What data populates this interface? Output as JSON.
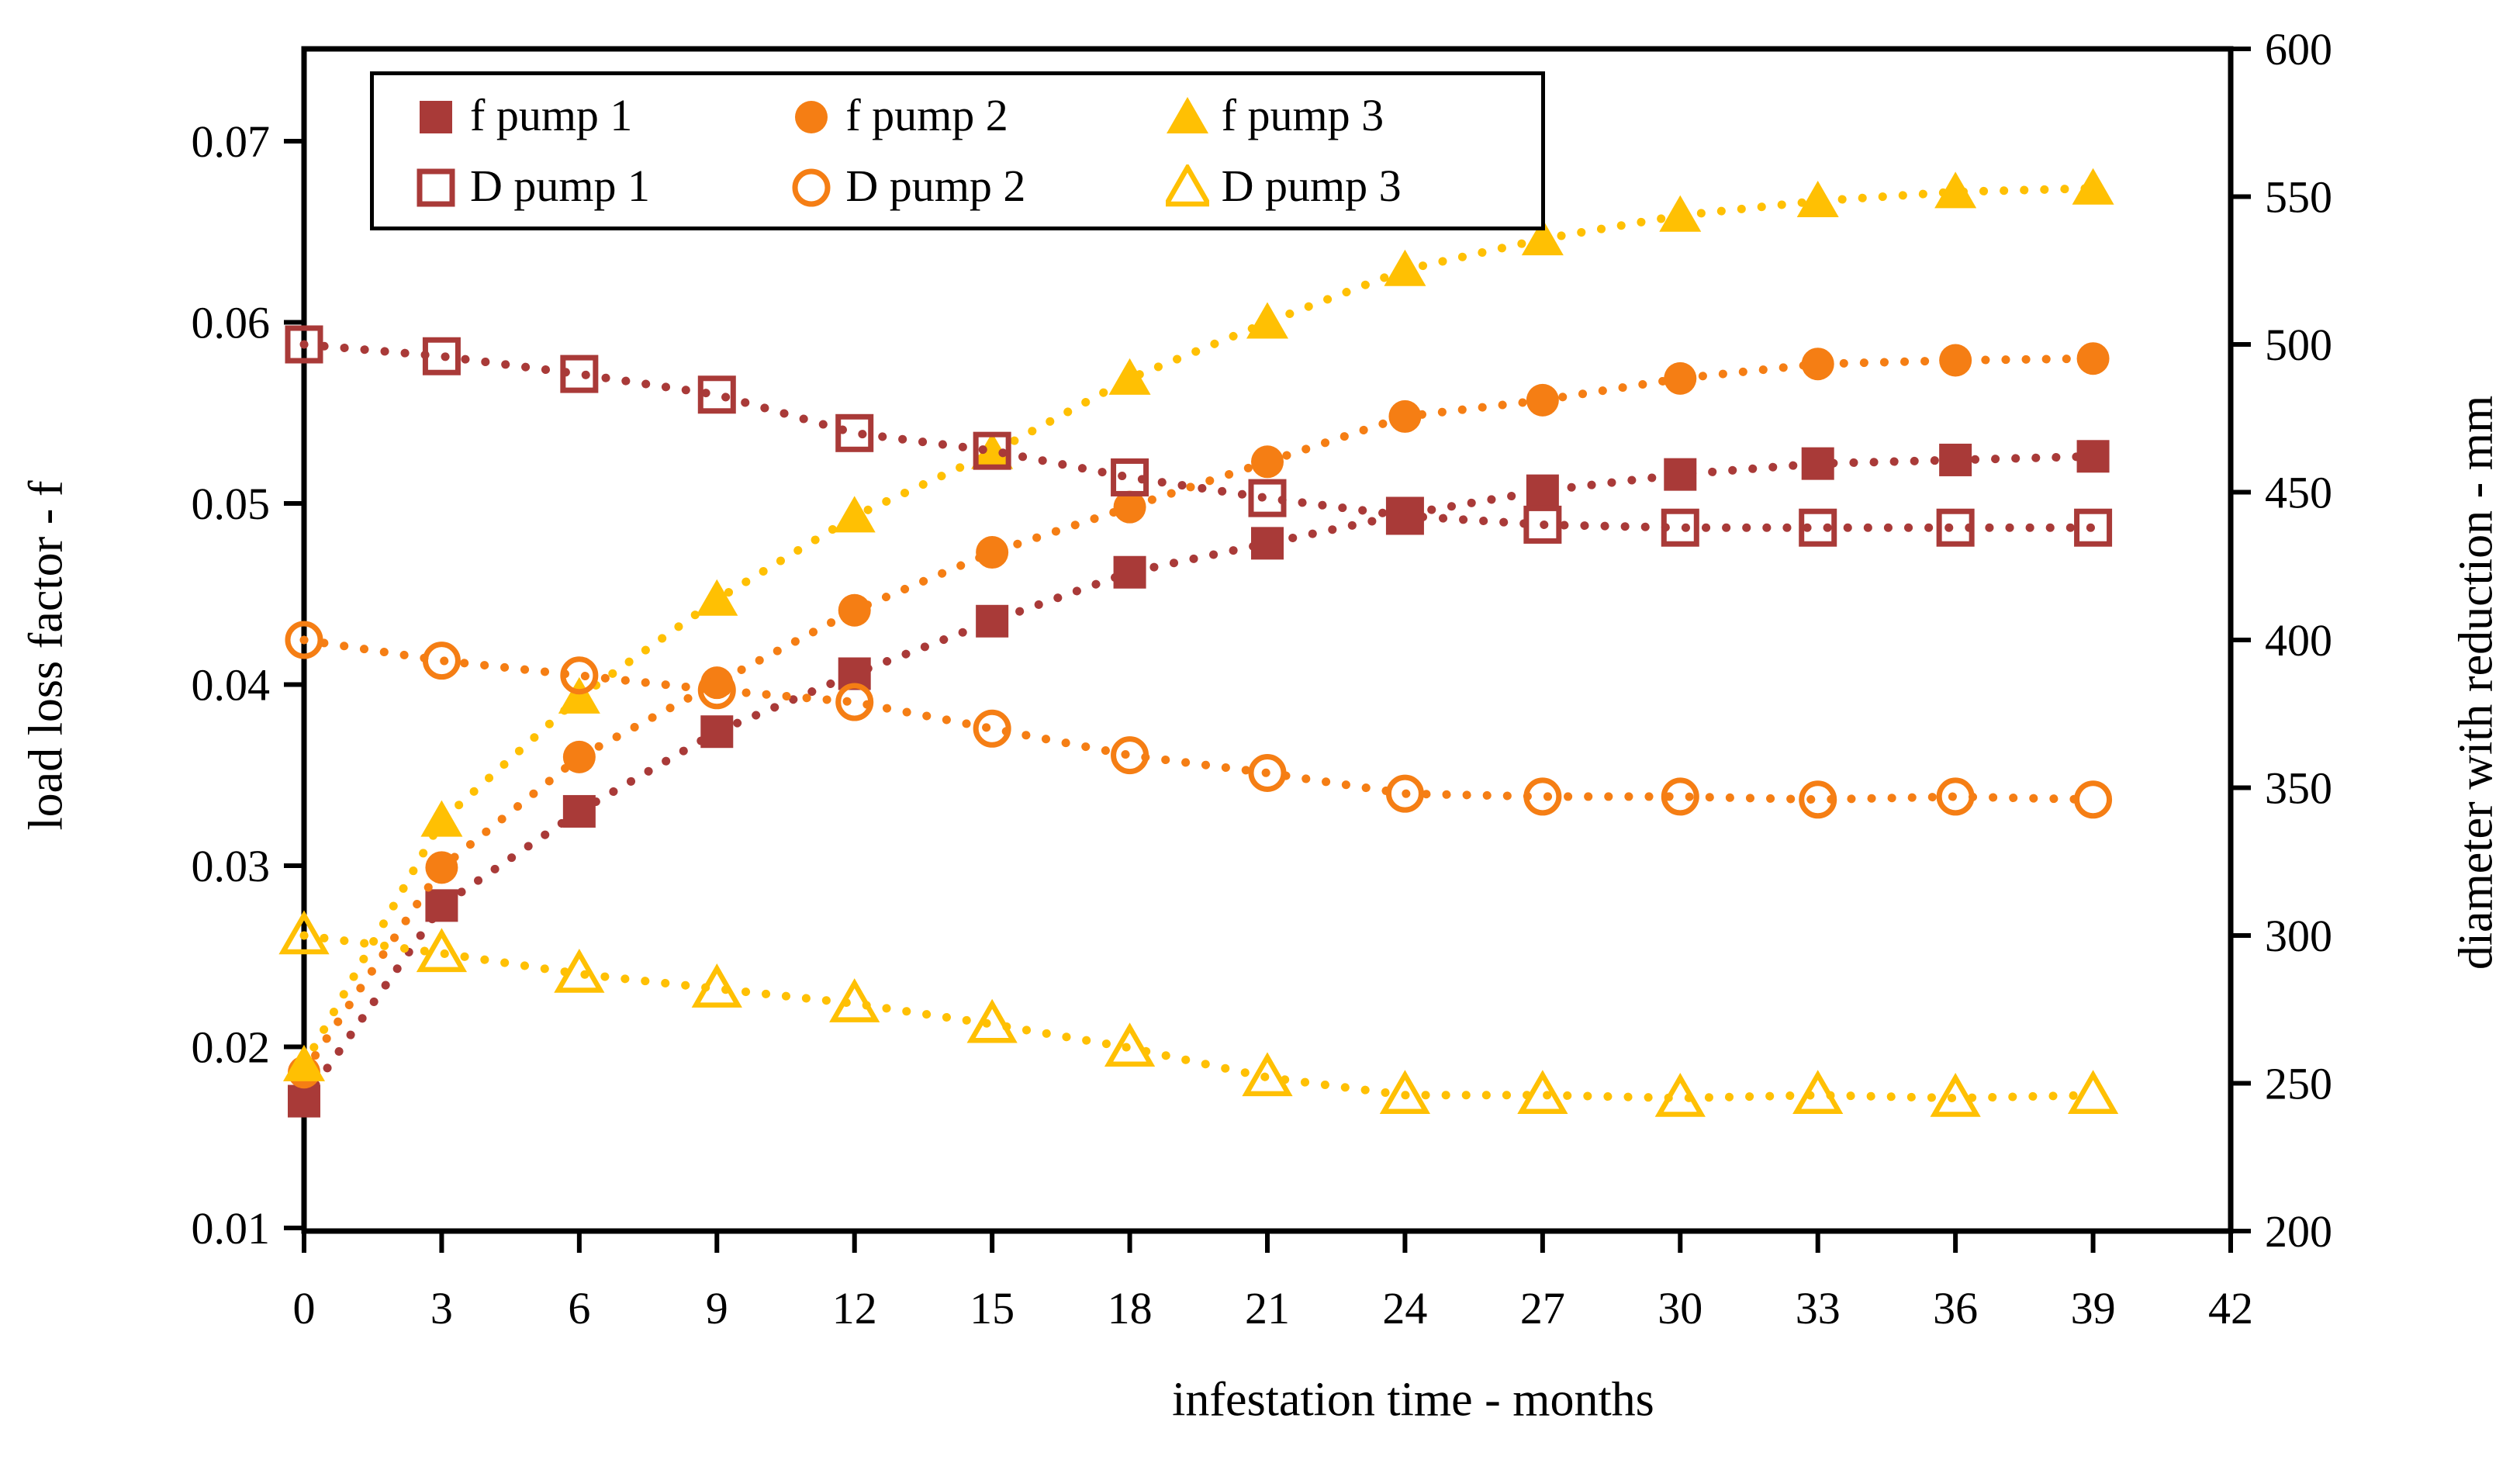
{
  "chart_data": {
    "type": "line",
    "x": [
      0,
      3,
      6,
      9,
      12,
      15,
      18,
      21,
      24,
      27,
      30,
      33,
      36,
      39
    ],
    "x_axis": {
      "label": "infestation time - months",
      "min": 0,
      "max": 42,
      "ticks": [
        {
          "v": 0,
          "label": "0"
        },
        {
          "v": 3,
          "label": "3"
        },
        {
          "v": 6,
          "label": "6"
        },
        {
          "v": 9,
          "label": "9"
        },
        {
          "v": 12,
          "label": "12"
        },
        {
          "v": 15,
          "label": "15"
        },
        {
          "v": 18,
          "label": "18"
        },
        {
          "v": 21,
          "label": "21"
        },
        {
          "v": 24,
          "label": "24"
        },
        {
          "v": 27,
          "label": "27"
        },
        {
          "v": 30,
          "label": "30"
        },
        {
          "v": 33,
          "label": "33"
        },
        {
          "v": 36,
          "label": "36"
        },
        {
          "v": 39,
          "label": "39"
        },
        {
          "v": 42,
          "label": "42"
        }
      ]
    },
    "left_axis": {
      "label": "load loss factor - f",
      "min": 0.01,
      "max": 0.07,
      "ticks": [
        {
          "v": 0.01,
          "label": "0.01"
        },
        {
          "v": 0.02,
          "label": "0.02"
        },
        {
          "v": 0.03,
          "label": "0.03"
        },
        {
          "v": 0.04,
          "label": "0.04"
        },
        {
          "v": 0.05,
          "label": "0.05"
        },
        {
          "v": 0.06,
          "label": "0.06"
        },
        {
          "v": 0.07,
          "label": "0.07"
        }
      ]
    },
    "right_axis": {
      "label": "diameter with reduction - mm",
      "min": 200,
      "max": 600,
      "ticks": [
        {
          "v": 200,
          "label": "200"
        },
        {
          "v": 250,
          "label": "250"
        },
        {
          "v": 300,
          "label": "300"
        },
        {
          "v": 350,
          "label": "350"
        },
        {
          "v": 400,
          "label": "400"
        },
        {
          "v": 450,
          "label": "450"
        },
        {
          "v": 500,
          "label": "500"
        },
        {
          "v": 550,
          "label": "550"
        },
        {
          "v": 600,
          "label": "600"
        }
      ]
    },
    "legend_position": "top-left-inside",
    "grid": false,
    "line_style": "dotted",
    "colors": {
      "pump1": "#a93a38",
      "pump2": "#f57e14",
      "pump3": "#ffc003"
    },
    "series": [
      {
        "name": "f pump 1",
        "axis": "left",
        "marker": "square",
        "fill": "filled",
        "color": "#a93a38",
        "values": [
          0.017,
          0.0278,
          0.033,
          0.0374,
          0.0406,
          0.0435,
          0.0462,
          0.0478,
          0.0494,
          0.0507,
          0.0516,
          0.0522,
          0.0524,
          0.0526
        ]
      },
      {
        "name": "f pump 2",
        "axis": "left",
        "marker": "circle",
        "fill": "filled",
        "color": "#f57e14",
        "values": [
          0.0186,
          0.0299,
          0.036,
          0.0401,
          0.0441,
          0.0473,
          0.0498,
          0.0523,
          0.0548,
          0.0557,
          0.0569,
          0.0577,
          0.0579,
          0.058
        ]
      },
      {
        "name": "f pump 3",
        "axis": "left",
        "marker": "triangle",
        "fill": "filled",
        "color": "#ffc003",
        "values": [
          0.019,
          0.0325,
          0.0393,
          0.0447,
          0.0493,
          0.0528,
          0.0569,
          0.06,
          0.0629,
          0.0646,
          0.0659,
          0.0667,
          0.0672,
          0.0674
        ]
      },
      {
        "name": "D pump 1",
        "axis": "right",
        "marker": "square",
        "fill": "open",
        "color": "#a93a38",
        "values": [
          500,
          496,
          490,
          483,
          470,
          464,
          455,
          448,
          442,
          439,
          438,
          438,
          438,
          438
        ]
      },
      {
        "name": "D pump 2",
        "axis": "right",
        "marker": "circle",
        "fill": "open",
        "color": "#f57e14",
        "values": [
          400,
          393,
          388,
          383,
          379,
          370,
          361,
          355,
          348,
          347,
          347,
          346,
          347,
          346
        ]
      },
      {
        "name": "D pump 3",
        "axis": "right",
        "marker": "triangle",
        "fill": "open",
        "color": "#ffc003",
        "values": [
          300,
          294,
          287,
          282,
          277,
          270,
          262,
          252,
          246,
          246,
          245,
          246,
          245,
          246
        ]
      }
    ]
  }
}
